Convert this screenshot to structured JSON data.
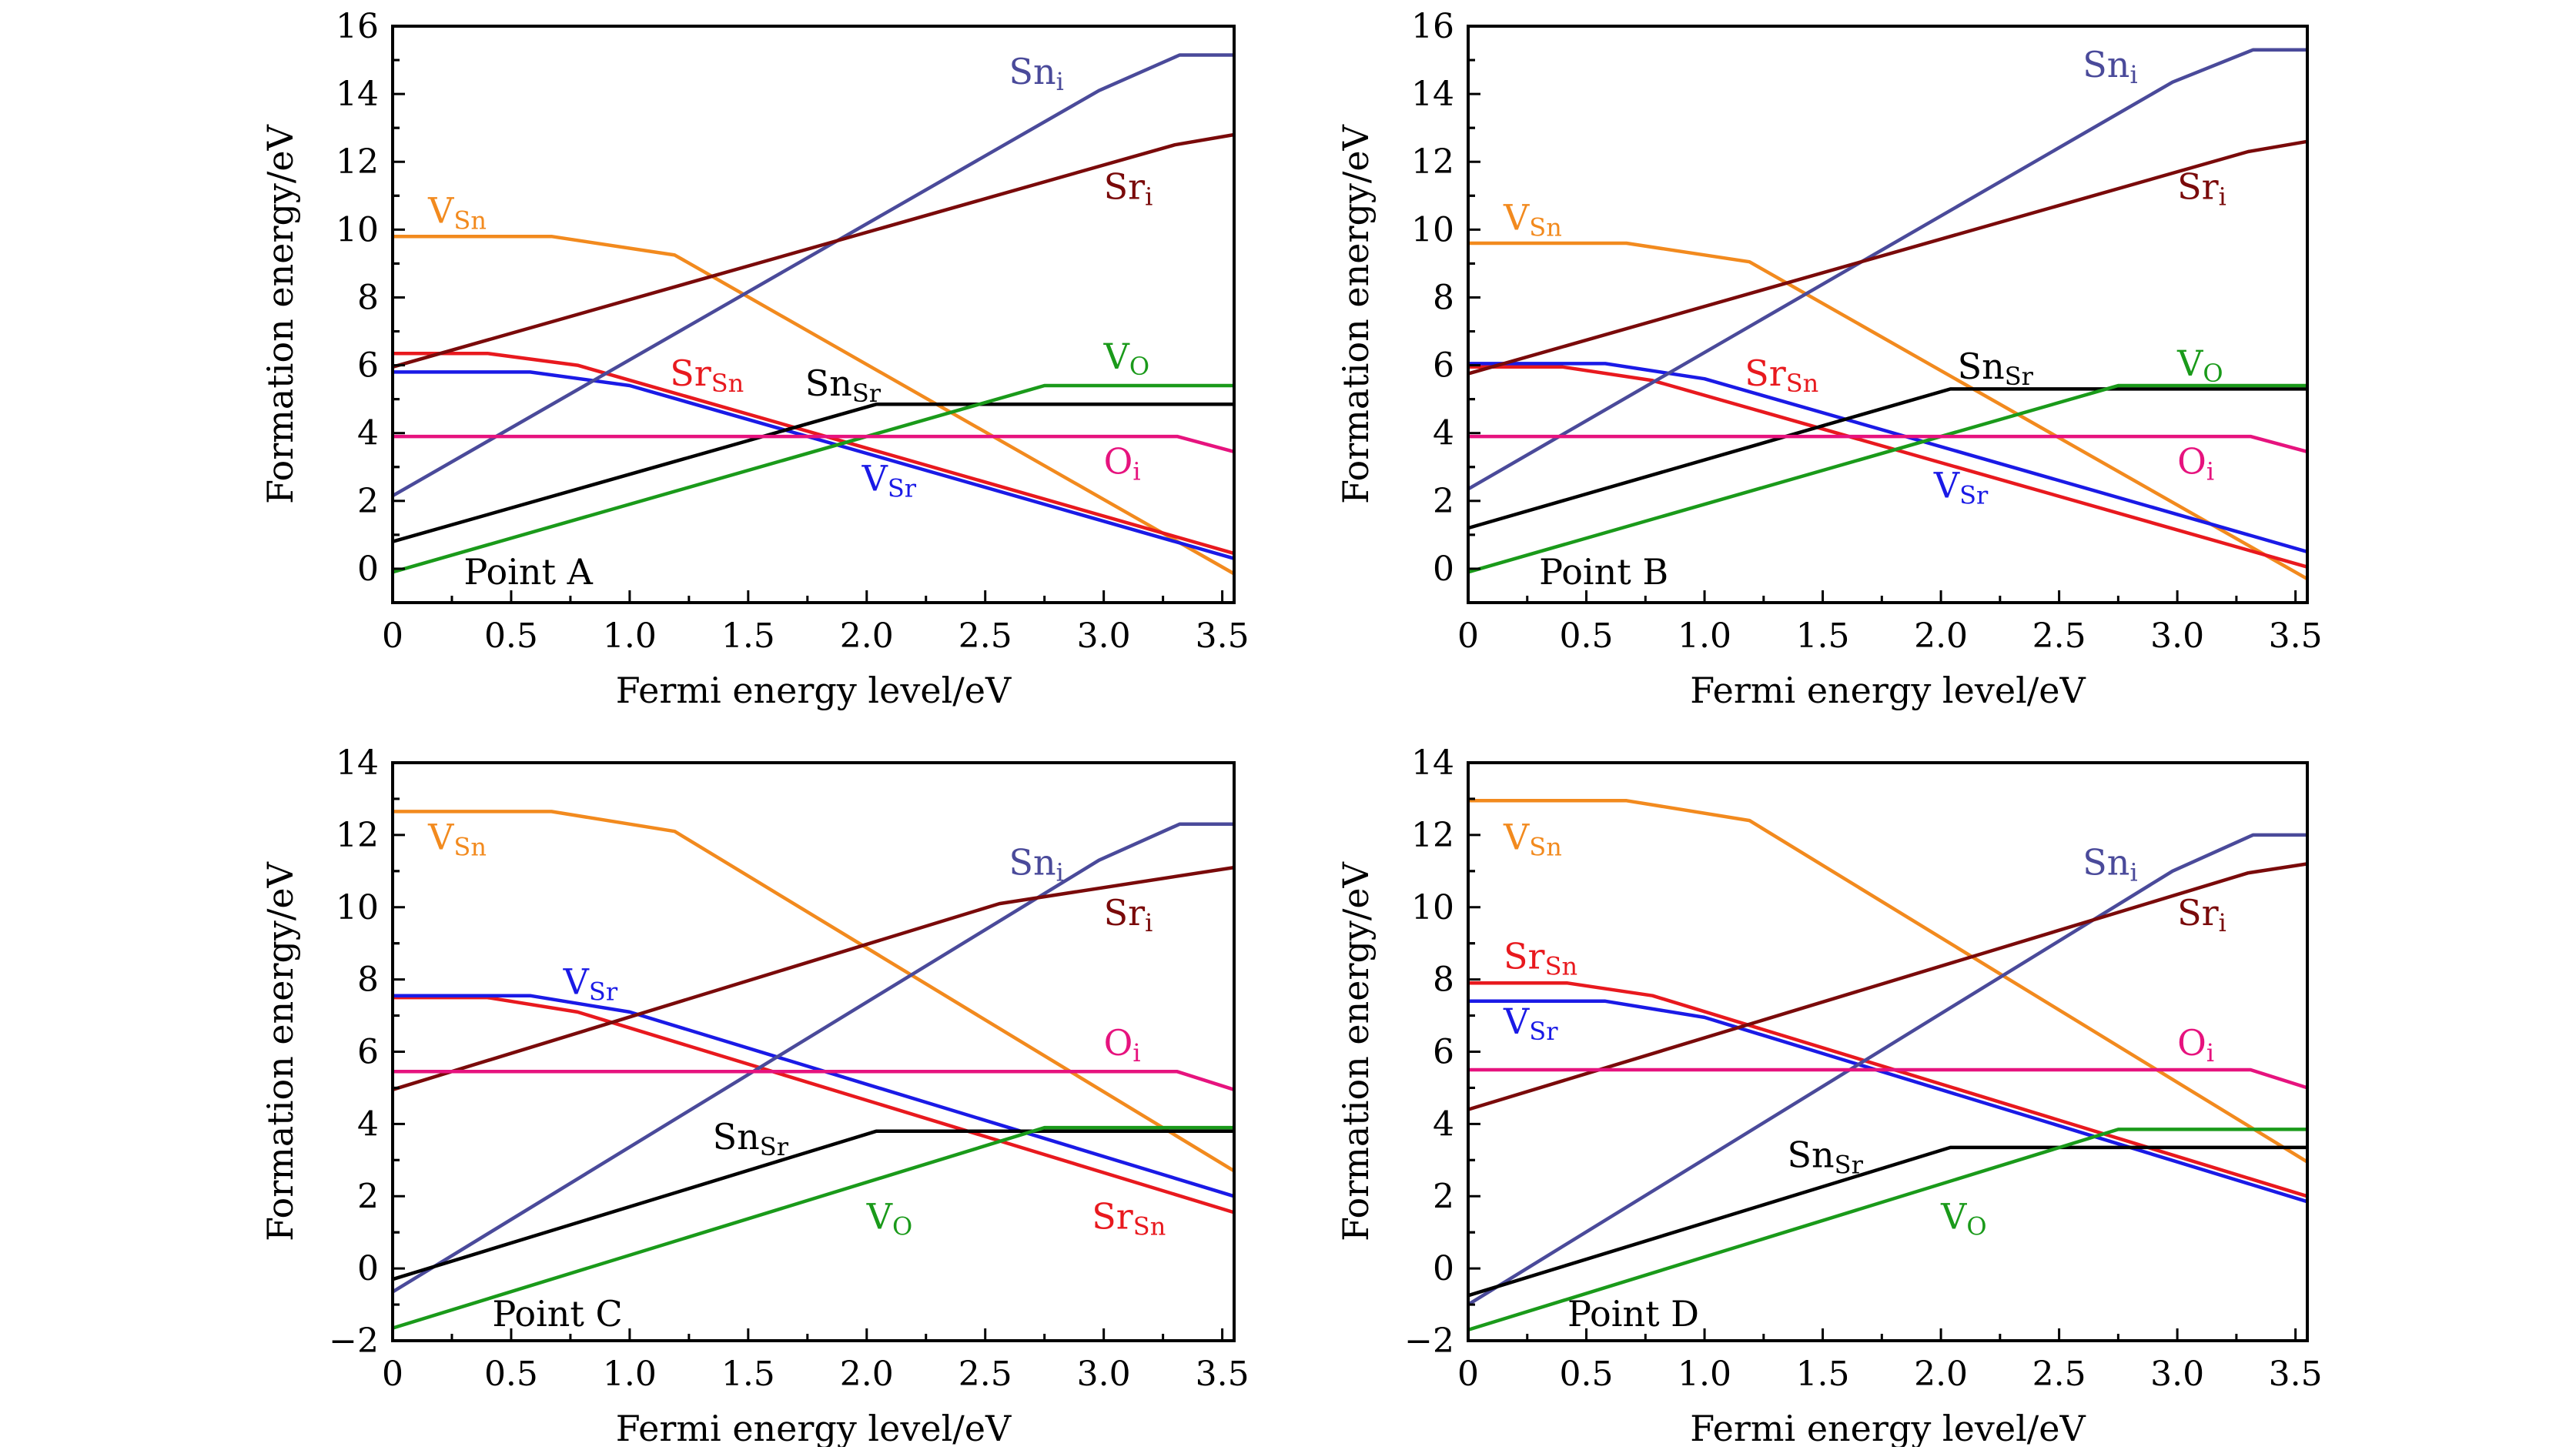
{
  "chart_data": [
    {
      "type": "line",
      "panel_label": "Point A",
      "xlabel": "Fermi energy level/eV",
      "ylabel": "Formation energy/eV",
      "xlim": [
        0,
        3.55
      ],
      "ylim": [
        -1,
        16
      ],
      "xticks": [
        "0",
        "0.5",
        "1.0",
        "1.5",
        "2.0",
        "2.5",
        "3.0",
        "3.5"
      ],
      "yticks": [
        "0",
        "2",
        "4",
        "6",
        "8",
        "10",
        "12",
        "14",
        "16"
      ],
      "series": [
        {
          "name": "VSn",
          "base": "V",
          "sub": "Sn",
          "color": "#f28a1e",
          "points": [
            [
              0,
              9.8
            ],
            [
              0.67,
              9.8
            ],
            [
              1.19,
              9.25
            ],
            [
              3.55,
              -0.15
            ]
          ]
        },
        {
          "name": "SrSn",
          "base": "Sr",
          "sub": "Sn",
          "color": "#e8191e",
          "points": [
            [
              0,
              6.35
            ],
            [
              0.4,
              6.35
            ],
            [
              0.78,
              6.0
            ],
            [
              3.55,
              0.45
            ]
          ]
        },
        {
          "name": "VSr",
          "base": "V",
          "sub": "Sr",
          "color": "#1a1ae6",
          "points": [
            [
              0,
              5.8
            ],
            [
              0.58,
              5.8
            ],
            [
              1.0,
              5.4
            ],
            [
              3.55,
              0.3
            ]
          ]
        },
        {
          "name": "Sni",
          "base": "Sn",
          "sub": "i",
          "color": "#4a4a9a",
          "points": [
            [
              0,
              2.15
            ],
            [
              2.98,
              14.1
            ],
            [
              3.32,
              15.15
            ],
            [
              3.55,
              15.15
            ]
          ]
        },
        {
          "name": "Sri",
          "base": "Sr",
          "sub": "i",
          "color": "#7a0a0a",
          "points": [
            [
              0,
              5.95
            ],
            [
              3.3,
              12.5
            ],
            [
              3.55,
              12.8
            ]
          ]
        },
        {
          "name": "SnSr",
          "base": "Sn",
          "sub": "Sr",
          "color": "#000000",
          "points": [
            [
              0,
              0.8
            ],
            [
              2.04,
              4.85
            ],
            [
              3.55,
              4.85
            ]
          ]
        },
        {
          "name": "VO",
          "base": "V",
          "sub": "O",
          "color": "#1a9a1a",
          "points": [
            [
              0,
              -0.1
            ],
            [
              2.75,
              5.4
            ],
            [
              3.55,
              5.4
            ]
          ]
        },
        {
          "name": "Oi",
          "base": "O",
          "sub": "i",
          "color": "#e6137e",
          "points": [
            [
              0,
              3.9
            ],
            [
              3.31,
              3.9
            ],
            [
              3.55,
              3.45
            ]
          ]
        }
      ]
    },
    {
      "type": "line",
      "panel_label": "Point B",
      "xlabel": "Fermi energy level/eV",
      "ylabel": "Formation energy/eV",
      "xlim": [
        0,
        3.55
      ],
      "ylim": [
        -1,
        16
      ],
      "xticks": [
        "0",
        "0.5",
        "1.0",
        "1.5",
        "2.0",
        "2.5",
        "3.0",
        "3.5"
      ],
      "yticks": [
        "0",
        "2",
        "4",
        "6",
        "8",
        "10",
        "12",
        "14",
        "16"
      ],
      "series": [
        {
          "name": "VSn",
          "base": "V",
          "sub": "Sn",
          "color": "#f28a1e",
          "points": [
            [
              0,
              9.6
            ],
            [
              0.67,
              9.6
            ],
            [
              1.19,
              9.05
            ],
            [
              3.55,
              -0.3
            ]
          ]
        },
        {
          "name": "SrSn",
          "base": "Sr",
          "sub": "Sn",
          "color": "#e8191e",
          "points": [
            [
              0,
              5.95
            ],
            [
              0.4,
              5.95
            ],
            [
              0.78,
              5.55
            ],
            [
              3.55,
              0.05
            ]
          ]
        },
        {
          "name": "VSr",
          "base": "V",
          "sub": "Sr",
          "color": "#1a1ae6",
          "points": [
            [
              0,
              6.05
            ],
            [
              0.58,
              6.05
            ],
            [
              1.0,
              5.6
            ],
            [
              3.55,
              0.5
            ]
          ]
        },
        {
          "name": "Sni",
          "base": "Sn",
          "sub": "i",
          "color": "#4a4a9a",
          "points": [
            [
              0,
              2.35
            ],
            [
              2.98,
              14.35
            ],
            [
              3.32,
              15.3
            ],
            [
              3.55,
              15.3
            ]
          ]
        },
        {
          "name": "Sri",
          "base": "Sr",
          "sub": "i",
          "color": "#7a0a0a",
          "points": [
            [
              0,
              5.75
            ],
            [
              3.3,
              12.3
            ],
            [
              3.55,
              12.6
            ]
          ]
        },
        {
          "name": "SnSr",
          "base": "Sn",
          "sub": "Sr",
          "color": "#000000",
          "points": [
            [
              0,
              1.2
            ],
            [
              2.04,
              5.3
            ],
            [
              3.55,
              5.3
            ]
          ]
        },
        {
          "name": "VO",
          "base": "V",
          "sub": "O",
          "color": "#1a9a1a",
          "points": [
            [
              0,
              -0.1
            ],
            [
              2.75,
              5.4
            ],
            [
              3.55,
              5.4
            ]
          ]
        },
        {
          "name": "Oi",
          "base": "O",
          "sub": "i",
          "color": "#e6137e",
          "points": [
            [
              0,
              3.9
            ],
            [
              3.31,
              3.9
            ],
            [
              3.55,
              3.45
            ]
          ]
        }
      ]
    },
    {
      "type": "line",
      "panel_label": "Point C",
      "xlabel": "Fermi energy level/eV",
      "ylabel": "Formation energy/eV",
      "xlim": [
        0,
        3.55
      ],
      "ylim": [
        -2,
        14
      ],
      "xticks": [
        "0",
        "0.5",
        "1.0",
        "1.5",
        "2.0",
        "2.5",
        "3.0",
        "3.5"
      ],
      "yticks": [
        "−2",
        "0",
        "2",
        "4",
        "6",
        "8",
        "10",
        "12",
        "14"
      ],
      "series": [
        {
          "name": "VSn",
          "base": "V",
          "sub": "Sn",
          "color": "#f28a1e",
          "points": [
            [
              0,
              12.65
            ],
            [
              0.67,
              12.65
            ],
            [
              1.19,
              12.1
            ],
            [
              3.55,
              2.7
            ]
          ]
        },
        {
          "name": "SrSn",
          "base": "Sr",
          "sub": "Sn",
          "color": "#e8191e",
          "points": [
            [
              0,
              7.5
            ],
            [
              0.4,
              7.5
            ],
            [
              0.78,
              7.1
            ],
            [
              3.55,
              1.55
            ]
          ]
        },
        {
          "name": "VSr",
          "base": "V",
          "sub": "Sr",
          "color": "#1a1ae6",
          "points": [
            [
              0,
              7.55
            ],
            [
              0.58,
              7.55
            ],
            [
              1.0,
              7.1
            ],
            [
              3.55,
              2.0
            ]
          ]
        },
        {
          "name": "Sni",
          "base": "Sn",
          "sub": "i",
          "color": "#4a4a9a",
          "points": [
            [
              0,
              -0.65
            ],
            [
              2.98,
              11.3
            ],
            [
              3.32,
              12.3
            ],
            [
              3.55,
              12.3
            ]
          ]
        },
        {
          "name": "Sri",
          "base": "Sr",
          "sub": "i",
          "color": "#7a0a0a",
          "points": [
            [
              0,
              4.95
            ],
            [
              2.56,
              10.1
            ],
            [
              3.55,
              11.1
            ]
          ]
        },
        {
          "name": "SnSr",
          "base": "Sn",
          "sub": "Sr",
          "color": "#000000",
          "points": [
            [
              0,
              -0.3
            ],
            [
              2.04,
              3.8
            ],
            [
              3.55,
              3.8
            ]
          ]
        },
        {
          "name": "VO",
          "base": "V",
          "sub": "O",
          "color": "#1a9a1a",
          "points": [
            [
              0,
              -1.65
            ],
            [
              2.75,
              3.9
            ],
            [
              3.55,
              3.9
            ]
          ]
        },
        {
          "name": "Oi",
          "base": "O",
          "sub": "i",
          "color": "#e6137e",
          "points": [
            [
              0,
              5.45
            ],
            [
              3.31,
              5.45
            ],
            [
              3.55,
              4.95
            ]
          ]
        }
      ]
    },
    {
      "type": "line",
      "panel_label": "Point D",
      "xlabel": "Fermi energy level/eV",
      "ylabel": "Formation energy/eV",
      "xlim": [
        0,
        3.55
      ],
      "ylim": [
        -2,
        14
      ],
      "xticks": [
        "0",
        "0.5",
        "1.0",
        "1.5",
        "2.0",
        "2.5",
        "3.0",
        "3.5"
      ],
      "yticks": [
        "−2",
        "0",
        "2",
        "4",
        "6",
        "8",
        "10",
        "12",
        "14"
      ],
      "series": [
        {
          "name": "VSn",
          "base": "V",
          "sub": "Sn",
          "color": "#f28a1e",
          "points": [
            [
              0,
              12.95
            ],
            [
              0.67,
              12.95
            ],
            [
              1.19,
              12.4
            ],
            [
              3.55,
              2.95
            ]
          ]
        },
        {
          "name": "SrSn",
          "base": "Sr",
          "sub": "Sn",
          "color": "#e8191e",
          "points": [
            [
              0,
              7.9
            ],
            [
              0.42,
              7.9
            ],
            [
              0.78,
              7.55
            ],
            [
              3.55,
              2.0
            ]
          ]
        },
        {
          "name": "VSr",
          "base": "V",
          "sub": "Sr",
          "color": "#1a1ae6",
          "points": [
            [
              0,
              7.4
            ],
            [
              0.58,
              7.4
            ],
            [
              1.0,
              6.95
            ],
            [
              3.55,
              1.85
            ]
          ]
        },
        {
          "name": "Sni",
          "base": "Sn",
          "sub": "i",
          "color": "#4a4a9a",
          "points": [
            [
              0,
              -1.0
            ],
            [
              2.98,
              11.0
            ],
            [
              3.32,
              12.0
            ],
            [
              3.55,
              12.0
            ]
          ]
        },
        {
          "name": "Sri",
          "base": "Sr",
          "sub": "i",
          "color": "#7a0a0a",
          "points": [
            [
              0,
              4.4
            ],
            [
              3.3,
              10.95
            ],
            [
              3.55,
              11.2
            ]
          ]
        },
        {
          "name": "SnSr",
          "base": "Sn",
          "sub": "Sr",
          "color": "#000000",
          "points": [
            [
              0,
              -0.75
            ],
            [
              2.04,
              3.35
            ],
            [
              3.55,
              3.35
            ]
          ]
        },
        {
          "name": "VO",
          "base": "V",
          "sub": "O",
          "color": "#1a9a1a",
          "points": [
            [
              0,
              -1.7
            ],
            [
              2.75,
              3.85
            ],
            [
              3.55,
              3.85
            ]
          ]
        },
        {
          "name": "Oi",
          "base": "O",
          "sub": "i",
          "color": "#e6137e",
          "points": [
            [
              0,
              5.5
            ],
            [
              3.31,
              5.5
            ],
            [
              3.55,
              5.0
            ]
          ]
        }
      ]
    }
  ]
}
